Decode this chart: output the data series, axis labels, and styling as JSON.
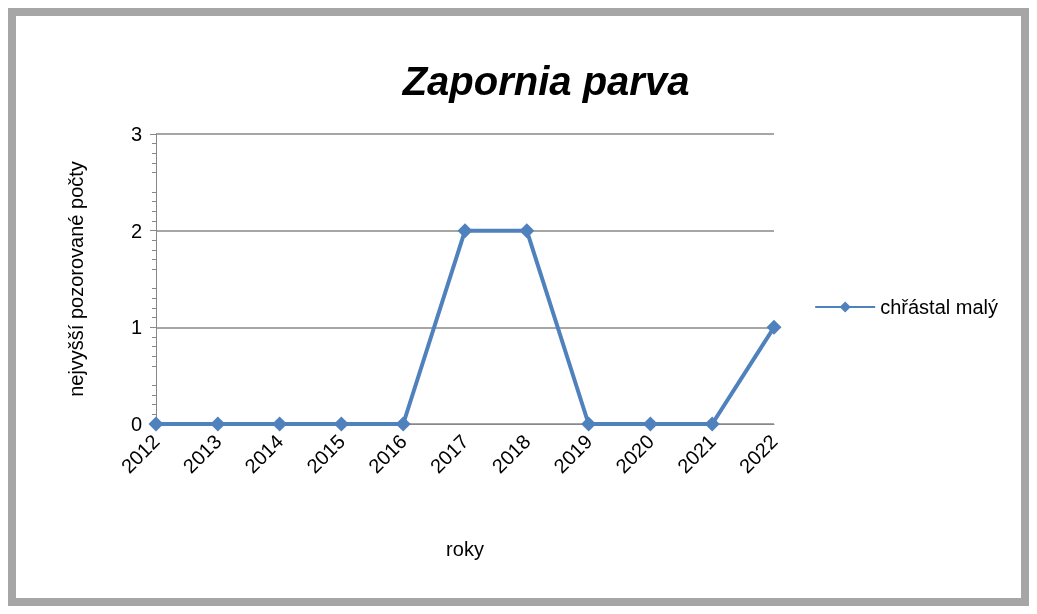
{
  "chart_data": {
    "type": "line",
    "title": "Zapornia parva",
    "xlabel": "roky",
    "ylabel": "nejvyšší pozorované počty",
    "categories": [
      "2012",
      "2013",
      "2014",
      "2015",
      "2016",
      "2017",
      "2018",
      "2019",
      "2020",
      "2021",
      "2022"
    ],
    "series": [
      {
        "name": "chřástal malý",
        "color": "#4f81bd",
        "values": [
          0,
          0,
          0,
          0,
          0,
          2,
          2,
          0,
          0,
          0,
          1
        ]
      }
    ],
    "ylim": [
      0,
      3
    ],
    "yticks": [
      0,
      1,
      2,
      3
    ],
    "grid": "y",
    "legend": "right",
    "marker": "diamond",
    "line_style": "solid"
  }
}
